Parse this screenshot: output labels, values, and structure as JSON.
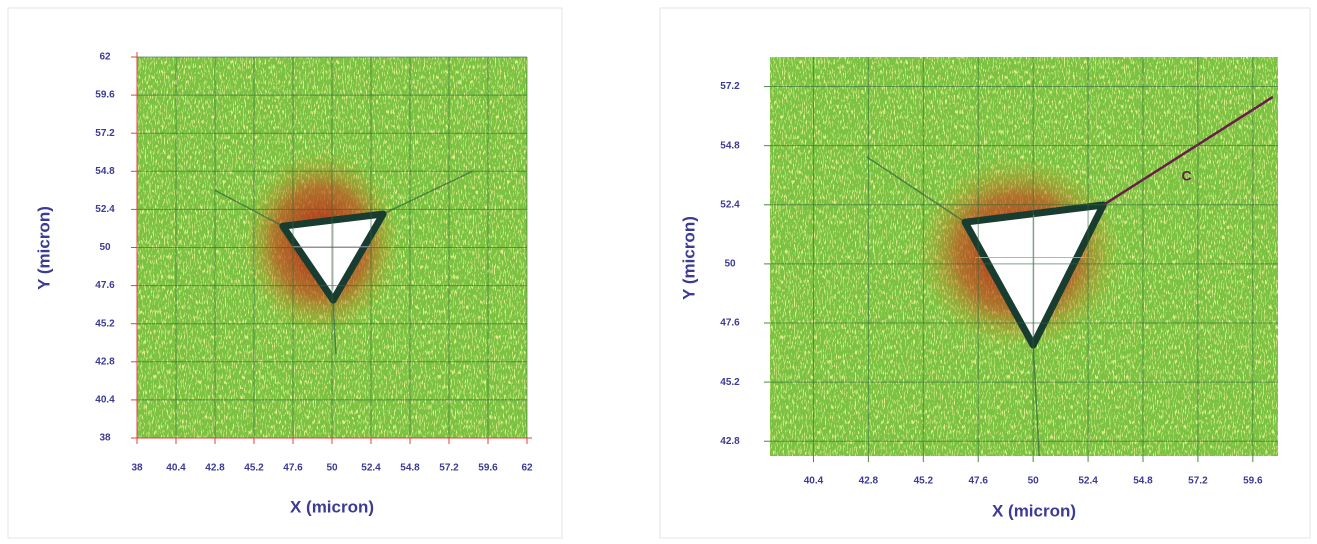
{
  "chart_data": [
    {
      "type": "image",
      "x_label": "X (micron)",
      "y_label": "Y (micron)",
      "xlim": [
        38,
        62
      ],
      "ylim": [
        38,
        62
      ],
      "xticks": [
        38,
        40.4,
        42.8,
        45.2,
        47.6,
        50,
        52.4,
        54.8,
        57.2,
        59.6,
        62
      ],
      "yticks": [
        38,
        40.4,
        42.8,
        45.2,
        47.6,
        50,
        52.4,
        54.8,
        57.2,
        59.6,
        62
      ],
      "grid": true,
      "color": "#7cc242"
    },
    {
      "type": "image",
      "x_label": "X (micron)",
      "y_label": "Y (micron)",
      "xlim": [
        38.5,
        60.7
      ],
      "ylim": [
        42.2,
        58.4
      ],
      "xticks": [
        40.4,
        42.8,
        45.2,
        47.6,
        50,
        52.4,
        54.8,
        57.2,
        59.6
      ],
      "yticks": [
        42.8,
        45.2,
        47.6,
        50,
        52.4,
        54.8,
        57.2
      ],
      "grid": true,
      "color": "#7cc242",
      "annotations": [
        {
          "text": "C"
        }
      ]
    }
  ]
}
